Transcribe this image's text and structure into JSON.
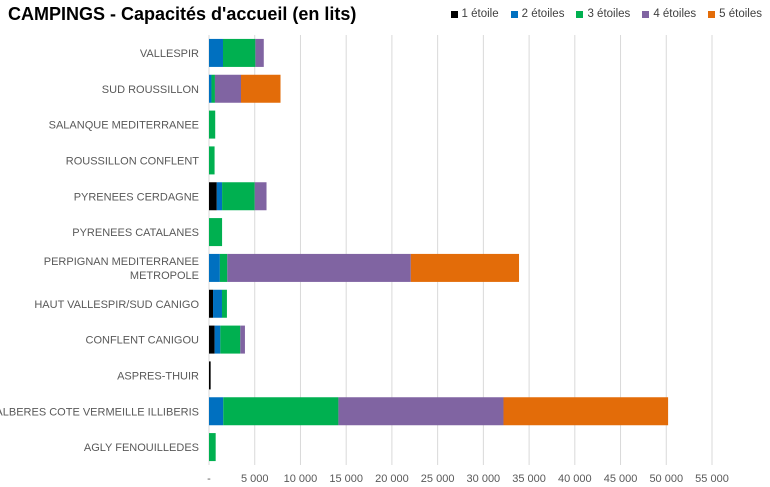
{
  "chart_data": {
    "type": "bar",
    "orientation": "horizontal",
    "stacked": true,
    "title": "CAMPINGS - Capacités d'accueil (en lits)",
    "xlabel": "",
    "ylabel": "",
    "xlim": [
      0,
      55000
    ],
    "x_ticks": [
      0,
      5000,
      10000,
      15000,
      20000,
      25000,
      30000,
      35000,
      40000,
      45000,
      50000,
      55000
    ],
    "x_tick_labels": [
      "-",
      "5 000",
      "10 000",
      "15 000",
      "20 000",
      "25 000",
      "30 000",
      "35 000",
      "40 000",
      "45 000",
      "50 000",
      "55 000"
    ],
    "grid": true,
    "legend_position": "top-right",
    "categories": [
      [
        "VALLESPIR"
      ],
      [
        "SUD ROUSSILLON"
      ],
      [
        "SALANQUE MEDITERRANEE"
      ],
      [
        "ROUSSILLON CONFLENT"
      ],
      [
        "PYRENEES CERDAGNE"
      ],
      [
        "PYRENEES CATALANES"
      ],
      [
        "PERPIGNAN MEDITERRANEE",
        "METROPOLE"
      ],
      [
        "HAUT VALLESPIR/SUD CANIGO"
      ],
      [
        "CONFLENT CANIGOU"
      ],
      [
        "ASPRES-THUIR"
      ],
      [
        "ALBERES COTE VERMEILLE ILLIBERIS"
      ],
      [
        "AGLY FENOUILLEDES"
      ]
    ],
    "series": [
      {
        "name": "1 étoile",
        "color": "#000000",
        "values": [
          0,
          0,
          0,
          0,
          850,
          0,
          0,
          440,
          620,
          180,
          0,
          0
        ]
      },
      {
        "name": "2 étoiles",
        "color": "#0070C0",
        "values": [
          1530,
          270,
          0,
          0,
          580,
          0,
          1190,
          980,
          620,
          0,
          1560,
          0
        ]
      },
      {
        "name": "3 étoiles",
        "color": "#00B050",
        "values": [
          3540,
          380,
          680,
          610,
          3570,
          1430,
          810,
          540,
          2180,
          0,
          12590,
          730
        ]
      },
      {
        "name": "4 étoiles",
        "color": "#8064A2",
        "values": [
          920,
          2850,
          0,
          0,
          1290,
          0,
          20070,
          0,
          510,
          0,
          18050,
          0
        ]
      },
      {
        "name": "5 étoiles",
        "color": "#E36C09",
        "values": [
          0,
          4320,
          0,
          0,
          0,
          0,
          11830,
          0,
          0,
          0,
          18000,
          0
        ]
      }
    ]
  }
}
